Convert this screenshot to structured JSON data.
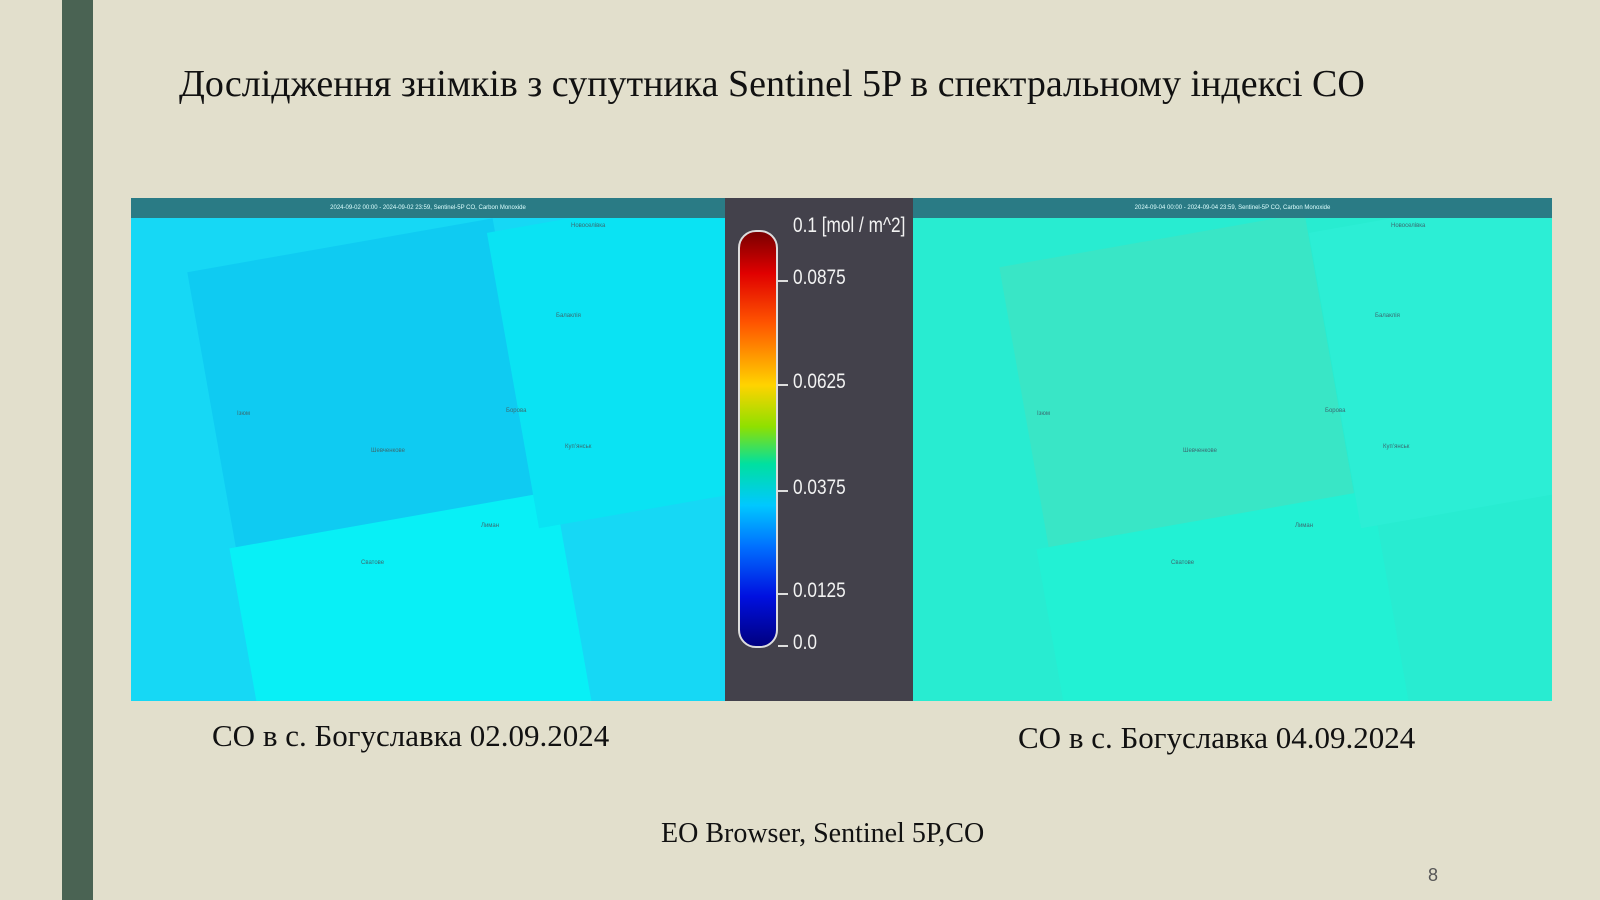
{
  "slide": {
    "title": "Дослідження знімків з супутника Sentinel 5P в спектральному індексі CO",
    "source": "EO Browser, Sentinel 5P,CO",
    "page_number": "8"
  },
  "maps": {
    "left": {
      "caption": "CO в с. Богуславка 02.09.2024",
      "header": "2024-09-02 00:00 - 2024-09-02 23:59, Sentinel-5P CO, Carbon Monoxide",
      "cities": [
        "Новоселівка",
        "Балаклія",
        "Ізюм",
        "Шевченкове",
        "Борова",
        "Купʼянськ",
        "Лиман",
        "Сватове"
      ]
    },
    "right": {
      "caption": "CO в с. Богуславка 04.09.2024",
      "header": "2024-09-04 00:00 - 2024-09-04 23:59, Sentinel-5P CO, Carbon Monoxide",
      "cities": [
        "Новоселівка",
        "Балаклія",
        "Ізюм",
        "Шевченкове",
        "Борова",
        "Купʼянськ",
        "Лиман",
        "Сватове"
      ]
    }
  },
  "legend": {
    "unit_label": "0.1 [mol / m^2]",
    "ticks": [
      "0.0875",
      "0.0625",
      "0.0375",
      "0.0125",
      "0.0"
    ]
  },
  "colors": {
    "background": "#e2dfcc",
    "accent_bar": "#4a6353",
    "legend_bg": "#43414b"
  }
}
